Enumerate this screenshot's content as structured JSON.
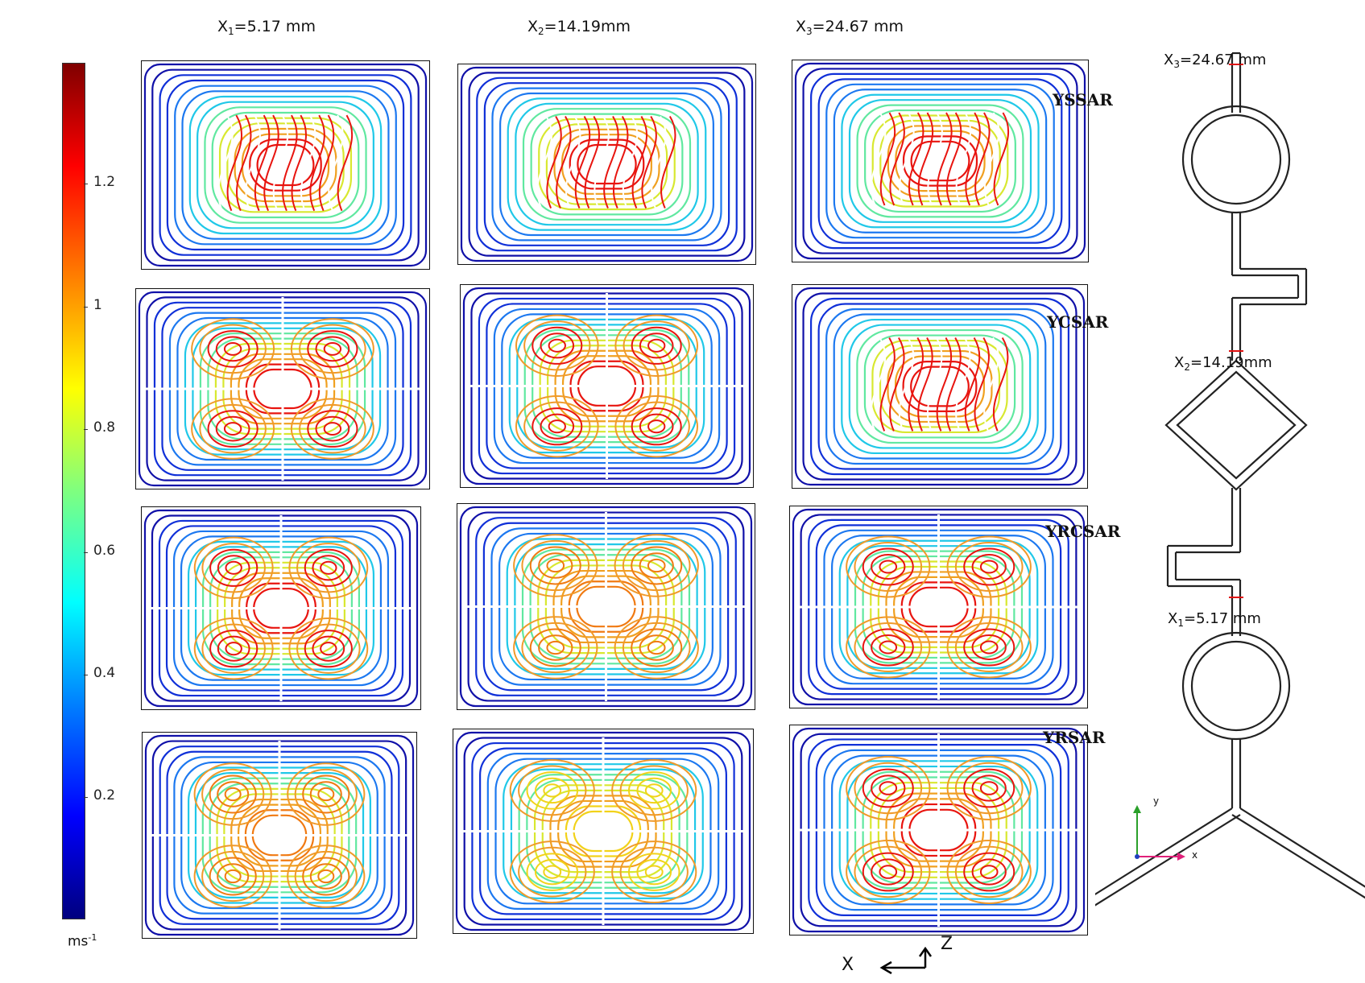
{
  "columns": [
    {
      "prefix": "X",
      "sub": "1",
      "rest": "=5.17 mm"
    },
    {
      "prefix": "X",
      "sub": "2",
      "rest": "=14.19mm"
    },
    {
      "prefix": "X",
      "sub": "3",
      "rest": "=24.67 mm"
    }
  ],
  "colorbar": {
    "ticks": [
      "1.2",
      "1",
      "0.8",
      "0.6",
      "0.4",
      "0.2"
    ],
    "unit_base": "ms",
    "unit_exp": "-1",
    "colors": [
      "#00007f",
      "#0000ff",
      "#007fff",
      "#00ffff",
      "#7fff7f",
      "#ffff00",
      "#ff7f00",
      "#ff0000",
      "#7f0000"
    ]
  },
  "geometry": {
    "labels": [
      "YSSAR",
      "YCSAR",
      "YRCSAR",
      "YRSAR"
    ],
    "locations": [
      {
        "prefix": "X",
        "sub": "3",
        "rest": "=24.67 mm"
      },
      {
        "prefix": "X",
        "sub": "2",
        "rest": "=14.19mm"
      },
      {
        "prefix": "X",
        "sub": "1",
        "rest": "=5.17 mm"
      }
    ],
    "axis_y": "y",
    "axis_x": "x"
  },
  "section_axes": {
    "x": "X",
    "z": "Z"
  },
  "panels": [
    {
      "row": 1,
      "col": 1,
      "pattern": "chaotic",
      "peak": "red"
    },
    {
      "row": 1,
      "col": 2,
      "pattern": "chaotic",
      "peak": "red"
    },
    {
      "row": 1,
      "col": 3,
      "pattern": "chaotic",
      "peak": "red"
    },
    {
      "row": 2,
      "col": 1,
      "pattern": "four-vortex",
      "peak": "red"
    },
    {
      "row": 2,
      "col": 2,
      "pattern": "four-vortex",
      "peak": "red"
    },
    {
      "row": 2,
      "col": 3,
      "pattern": "chaotic",
      "peak": "red"
    },
    {
      "row": 3,
      "col": 1,
      "pattern": "four-vortex",
      "peak": "red"
    },
    {
      "row": 3,
      "col": 2,
      "pattern": "four-vortex",
      "peak": "orange"
    },
    {
      "row": 3,
      "col": 3,
      "pattern": "four-vortex",
      "peak": "red"
    },
    {
      "row": 4,
      "col": 1,
      "pattern": "four-vortex",
      "peak": "orange"
    },
    {
      "row": 4,
      "col": 2,
      "pattern": "four-vortex",
      "peak": "yellow"
    },
    {
      "row": 4,
      "col": 3,
      "pattern": "four-vortex",
      "peak": "red"
    }
  ]
}
